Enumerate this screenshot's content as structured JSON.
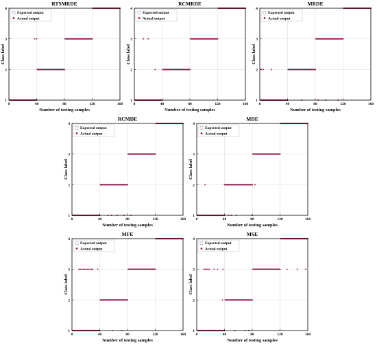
{
  "figure": {
    "xlabel": "Number of testing samples",
    "ylabel": "Class label",
    "legend": {
      "expected": "Expected output",
      "actual": "Actual output",
      "placement": "top-left"
    },
    "colors": {
      "expected": "#c9cfe0",
      "actual": "#9c1848",
      "grid": "#d8d8d8",
      "axis": "#000000"
    },
    "xticks": [
      0,
      40,
      80,
      120,
      160
    ],
    "yticks": [
      1,
      2,
      3,
      4
    ]
  },
  "chart_data": [
    {
      "type": "scatter",
      "title": "RTSMRDE",
      "xlabel": "Number of testing samples",
      "ylabel": "Class label",
      "xlim": [
        0,
        160
      ],
      "ylim": [
        1,
        4
      ],
      "grid": true,
      "legend": "top-left",
      "series": [
        {
          "name": "Expected output",
          "segments": [
            [
              1,
              40,
              1
            ],
            [
              41,
              80,
              2
            ],
            [
              81,
              120,
              3
            ],
            [
              121,
              160,
              4
            ]
          ],
          "points": []
        },
        {
          "name": "Actual output",
          "segments": [
            [
              1,
              40,
              1
            ],
            [
              41,
              80,
              2
            ],
            [
              81,
              120,
              3
            ],
            [
              121,
              160,
              4
            ]
          ],
          "points": [
            [
              37,
              3
            ],
            [
              40,
              3
            ]
          ]
        }
      ]
    },
    {
      "type": "scatter",
      "title": "RCMRDE",
      "xlabel": "Number of testing samples",
      "ylabel": "Class label",
      "xlim": [
        0,
        160
      ],
      "ylim": [
        1,
        4
      ],
      "grid": true,
      "legend": "top-left",
      "series": [
        {
          "name": "Expected output",
          "segments": [
            [
              1,
              40,
              1
            ],
            [
              41,
              80,
              2
            ],
            [
              81,
              120,
              3
            ],
            [
              121,
              160,
              4
            ]
          ],
          "points": []
        },
        {
          "name": "Actual output",
          "segments": [
            [
              1,
              40,
              1
            ],
            [
              41,
              80,
              2
            ],
            [
              81,
              120,
              3
            ],
            [
              121,
              160,
              4
            ]
          ],
          "points": [
            [
              13,
              3
            ],
            [
              20,
              3
            ],
            [
              30,
              2
            ]
          ]
        }
      ]
    },
    {
      "type": "scatter",
      "title": "MRDE",
      "xlabel": "Number of testing samples",
      "ylabel": "Class label",
      "xlim": [
        0,
        160
      ],
      "ylim": [
        1,
        4
      ],
      "grid": true,
      "legend": "top-left",
      "series": [
        {
          "name": "Expected output",
          "segments": [
            [
              1,
              40,
              1
            ],
            [
              41,
              80,
              2
            ],
            [
              81,
              120,
              3
            ],
            [
              121,
              160,
              4
            ]
          ],
          "points": []
        },
        {
          "name": "Actual output",
          "segments": [
            [
              1,
              40,
              1
            ],
            [
              41,
              80,
              2
            ],
            [
              81,
              120,
              3
            ],
            [
              121,
              160,
              4
            ]
          ],
          "points": [
            [
              2,
              2
            ],
            [
              5,
              2
            ],
            [
              17,
              2
            ],
            [
              60,
              1
            ],
            [
              84,
              1
            ],
            [
              95,
              1
            ],
            [
              100,
              3
            ],
            [
              113,
              1
            ]
          ]
        }
      ]
    },
    {
      "type": "scatter",
      "title": "RCMDE",
      "xlabel": "Number of testing samples",
      "ylabel": "Class label",
      "xlim": [
        0,
        160
      ],
      "ylim": [
        1,
        4
      ],
      "grid": true,
      "legend": "top-left",
      "series": [
        {
          "name": "Expected output",
          "segments": [
            [
              1,
              40,
              1
            ],
            [
              41,
              80,
              2
            ],
            [
              81,
              120,
              3
            ],
            [
              121,
              160,
              4
            ]
          ],
          "points": []
        },
        {
          "name": "Actual output",
          "segments": [
            [
              1,
              40,
              1
            ],
            [
              41,
              80,
              2
            ],
            [
              81,
              120,
              3
            ],
            [
              121,
              160,
              4
            ]
          ],
          "points": [
            [
              52,
              1
            ],
            [
              57,
              1
            ],
            [
              65,
              1
            ],
            [
              75,
              1
            ],
            [
              85,
              1
            ]
          ]
        }
      ]
    },
    {
      "type": "scatter",
      "title": "MDE",
      "xlabel": "Number of testing samples",
      "ylabel": "Class label",
      "xlim": [
        0,
        160
      ],
      "ylim": [
        1,
        4
      ],
      "grid": true,
      "legend": "top-left",
      "series": [
        {
          "name": "Expected output",
          "segments": [
            [
              1,
              40,
              1
            ],
            [
              41,
              80,
              2
            ],
            [
              81,
              120,
              3
            ],
            [
              121,
              160,
              4
            ]
          ],
          "points": []
        },
        {
          "name": "Actual output",
          "segments": [
            [
              1,
              40,
              1
            ],
            [
              41,
              80,
              2
            ],
            [
              81,
              120,
              3
            ],
            [
              121,
              160,
              4
            ]
          ],
          "points": [
            [
              12,
              2
            ],
            [
              40,
              2
            ],
            [
              46,
              1
            ],
            [
              50,
              1
            ],
            [
              57,
              1
            ],
            [
              80,
              1
            ],
            [
              84,
              2
            ]
          ]
        }
      ]
    },
    {
      "type": "scatter",
      "title": "MFE",
      "xlabel": "Number of testing samples",
      "ylabel": "Class label",
      "xlim": [
        0,
        160
      ],
      "ylim": [
        1,
        4
      ],
      "grid": true,
      "legend": "top-left",
      "series": [
        {
          "name": "Expected output",
          "segments": [
            [
              1,
              40,
              1
            ],
            [
              41,
              80,
              2
            ],
            [
              81,
              120,
              3
            ],
            [
              121,
              160,
              4
            ]
          ],
          "points": []
        },
        {
          "name": "Actual output",
          "segments": [
            [
              1,
              40,
              1
            ],
            [
              41,
              80,
              2
            ],
            [
              81,
              120,
              3
            ],
            [
              121,
              160,
              4
            ]
          ],
          "points": [
            [
              10,
              3
            ],
            [
              12,
              3
            ],
            [
              14,
              3
            ],
            [
              16,
              3
            ],
            [
              18,
              3
            ],
            [
              20,
              3
            ],
            [
              22,
              3
            ],
            [
              24,
              3
            ],
            [
              26,
              3
            ],
            [
              28,
              3
            ],
            [
              30,
              3
            ],
            [
              37,
              3
            ],
            [
              58,
              1
            ],
            [
              72,
              1
            ]
          ]
        }
      ]
    },
    {
      "type": "scatter",
      "title": "MSE",
      "xlabel": "Number of testing samples",
      "ylabel": "Class label",
      "xlim": [
        0,
        160
      ],
      "ylim": [
        1,
        4
      ],
      "grid": true,
      "legend": "top-left",
      "series": [
        {
          "name": "Expected output",
          "segments": [
            [
              1,
              40,
              1
            ],
            [
              41,
              80,
              2
            ],
            [
              81,
              120,
              3
            ],
            [
              121,
              160,
              4
            ]
          ],
          "points": []
        },
        {
          "name": "Actual output",
          "segments": [
            [
              1,
              40,
              1
            ],
            [
              41,
              80,
              2
            ],
            [
              81,
              120,
              3
            ],
            [
              121,
              160,
              4
            ]
          ],
          "points": [
            [
              10,
              3
            ],
            [
              12,
              3
            ],
            [
              14,
              3
            ],
            [
              16,
              3
            ],
            [
              18,
              3
            ],
            [
              25,
              3
            ],
            [
              30,
              3
            ],
            [
              37,
              2
            ],
            [
              38,
              3
            ],
            [
              55,
              1
            ],
            [
              70,
              1
            ],
            [
              75,
              1
            ],
            [
              130,
              3
            ],
            [
              145,
              3
            ],
            [
              157,
              3
            ]
          ]
        }
      ]
    }
  ]
}
